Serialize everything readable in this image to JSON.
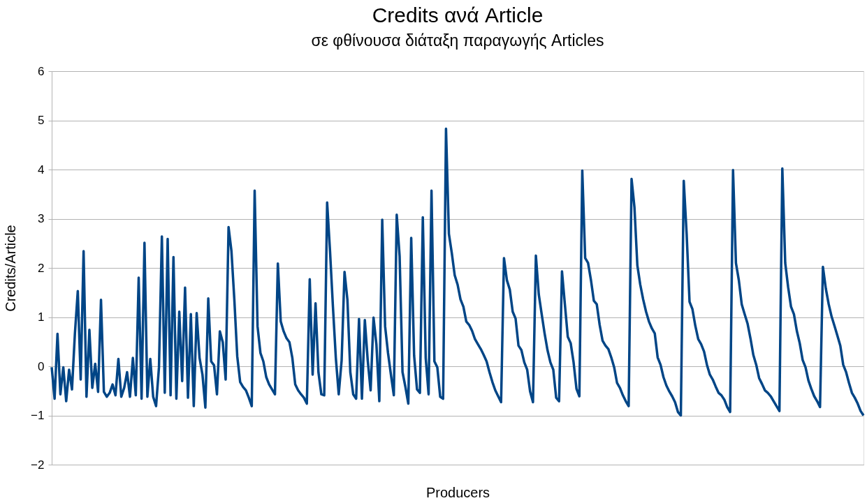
{
  "chart_data": {
    "type": "line",
    "title": "Credits ανά Article",
    "subtitle": "σε φθίνουσα διάταξη παραγωγής Articles",
    "xlabel": "Producers",
    "ylabel": "Credits/Article",
    "ylim": [
      -2,
      6
    ],
    "yticks": [
      -2,
      -1,
      0,
      1,
      2,
      3,
      4,
      5,
      6
    ],
    "grid": "y",
    "marker": "none",
    "line_style": "solid",
    "categories": [
      null,
      null,
      null,
      null,
      null,
      null,
      null,
      null,
      null,
      null,
      null,
      null,
      null,
      null,
      null,
      null,
      null,
      null,
      null,
      null,
      null,
      null,
      null,
      null,
      null,
      null,
      null,
      null,
      null,
      null,
      null,
      null,
      null,
      null,
      null,
      null,
      null,
      null,
      null,
      null,
      null,
      null,
      null,
      null,
      null,
      null,
      null,
      null,
      null,
      null,
      null,
      null,
      null,
      null,
      null,
      null,
      null,
      null,
      null,
      null,
      null,
      null,
      null,
      null,
      null,
      null,
      null,
      null,
      null,
      null,
      null,
      null,
      null,
      null,
      null,
      null,
      null,
      null,
      null,
      null,
      null,
      null,
      null,
      null,
      null,
      null,
      null,
      null,
      null,
      null,
      null,
      null,
      null,
      null,
      null,
      null,
      null,
      null,
      null,
      null,
      null,
      null,
      null,
      null,
      null,
      null,
      null,
      null,
      null,
      null,
      null,
      null,
      null,
      null,
      null,
      null,
      null,
      null,
      null,
      null,
      null,
      null,
      null,
      null,
      null,
      null,
      null,
      null,
      null,
      null,
      null,
      null,
      null,
      null,
      null,
      null,
      null,
      null,
      null,
      null,
      null,
      null,
      null,
      null,
      null,
      null,
      null,
      null,
      null,
      null,
      null,
      null,
      null,
      null,
      null,
      null,
      null,
      null,
      null,
      null,
      null,
      null,
      null,
      null,
      null,
      null,
      null,
      null,
      null,
      null,
      null,
      null,
      null,
      null,
      null,
      null,
      null,
      null,
      null,
      null,
      null,
      null,
      null,
      null,
      null,
      null,
      null,
      null,
      null,
      null,
      null,
      null,
      null,
      null,
      null,
      null,
      null,
      null,
      null,
      null,
      null,
      null,
      null,
      null,
      null,
      null,
      null,
      null,
      null,
      null,
      null,
      null,
      null,
      null,
      null,
      null,
      null,
      null,
      null,
      null,
      null,
      null,
      null,
      null,
      null,
      null,
      null,
      null,
      null,
      null,
      null,
      null,
      null,
      null,
      null,
      null,
      null,
      null,
      null,
      null,
      null,
      null,
      null,
      null,
      null,
      null,
      null,
      null,
      null,
      null,
      null,
      null,
      null,
      null,
      null,
      null,
      null,
      null,
      null,
      null,
      null,
      null,
      null,
      null,
      null,
      null,
      null,
      null,
      null,
      null,
      null,
      null,
      null,
      null,
      null,
      null,
      null,
      null,
      null,
      null,
      null
    ],
    "series": [
      {
        "color": "#004586",
        "values": [
          -0.02,
          -0.66,
          0.66,
          -0.57,
          -0.02,
          -0.71,
          -0.07,
          -0.47,
          0.66,
          1.53,
          -0.27,
          2.34,
          -0.62,
          0.74,
          -0.44,
          0.05,
          -0.52,
          1.35,
          -0.52,
          -0.62,
          -0.54,
          -0.37,
          -0.59,
          0.15,
          -0.62,
          -0.44,
          -0.12,
          -0.62,
          0.17,
          -0.59,
          1.8,
          -0.66,
          2.51,
          -0.62,
          0.15,
          -0.62,
          -0.81,
          -0.02,
          2.64,
          -0.54,
          2.59,
          -0.59,
          2.22,
          -0.66,
          1.11,
          -0.3,
          1.6,
          -0.64,
          1.06,
          -0.81,
          1.08,
          0.17,
          -0.17,
          -0.84,
          1.38,
          0.1,
          0.02,
          -0.57,
          0.71,
          0.49,
          -0.27,
          2.83,
          2.34,
          1.35,
          0.2,
          -0.32,
          -0.42,
          -0.49,
          -0.64,
          -0.81,
          3.57,
          0.81,
          0.27,
          0.1,
          -0.22,
          -0.37,
          -0.47,
          -0.57,
          2.09,
          0.91,
          0.71,
          0.57,
          0.49,
          0.17,
          -0.37,
          -0.49,
          -0.57,
          -0.64,
          -0.76,
          1.77,
          -0.17,
          1.28,
          -0.12,
          -0.57,
          -0.59,
          3.33,
          2.34,
          1.21,
          0.17,
          -0.57,
          0.12,
          1.92,
          1.35,
          -0.12,
          -0.57,
          -0.66,
          0.96,
          -0.66,
          0.94,
          0.12,
          -0.49,
          0.99,
          0.44,
          -0.71,
          2.98,
          0.81,
          0.27,
          -0.17,
          -0.59,
          3.08,
          2.24,
          -0.12,
          -0.42,
          -0.76,
          2.61,
          0.22,
          -0.47,
          -0.54,
          3.03,
          0.17,
          -0.57,
          3.57,
          0.1,
          -0.02,
          -0.62,
          -0.66,
          4.83,
          2.69,
          2.3,
          1.85,
          1.66,
          1.36,
          1.21,
          0.91,
          0.84,
          0.72,
          0.55,
          0.45,
          0.35,
          0.23,
          0.1,
          -0.12,
          -0.32,
          -0.49,
          -0.61,
          -0.73,
          2.2,
          1.75,
          1.56,
          1.11,
          0.97,
          0.42,
          0.33,
          0.08,
          -0.07,
          -0.51,
          -0.73,
          2.25,
          1.46,
          1.06,
          0.67,
          0.33,
          0.08,
          -0.07,
          -0.64,
          -0.71,
          1.93,
          1.26,
          0.6,
          0.47,
          0.08,
          -0.46,
          -0.61,
          3.98,
          2.2,
          2.1,
          1.75,
          1.33,
          1.26,
          0.84,
          0.52,
          0.42,
          0.35,
          0.18,
          -0.02,
          -0.34,
          -0.44,
          -0.59,
          -0.71,
          -0.81,
          3.81,
          3.23,
          2.05,
          1.66,
          1.36,
          1.11,
          0.91,
          0.77,
          0.67,
          0.18,
          0.03,
          -0.22,
          -0.39,
          -0.51,
          -0.61,
          -0.73,
          -0.93,
          -1.0,
          3.77,
          2.69,
          1.31,
          1.16,
          0.82,
          0.55,
          0.45,
          0.3,
          0.03,
          -0.17,
          -0.27,
          -0.41,
          -0.54,
          -0.59,
          -0.68,
          -0.83,
          -0.93,
          3.99,
          2.1,
          1.75,
          1.26,
          1.06,
          0.87,
          0.57,
          0.23,
          0.03,
          -0.24,
          -0.36,
          -0.49,
          -0.54,
          -0.61,
          -0.71,
          -0.81,
          -0.91,
          4.02,
          2.1,
          1.61,
          1.21,
          1.06,
          0.72,
          0.47,
          0.13,
          -0.02,
          -0.29,
          -0.46,
          -0.61,
          -0.71,
          -0.83,
          2.02,
          1.58,
          1.26,
          1.01,
          0.82,
          0.62,
          0.42,
          0.03,
          -0.12,
          -0.34,
          -0.54,
          -0.64,
          -0.76,
          -0.91,
          -1.0
        ]
      }
    ]
  }
}
